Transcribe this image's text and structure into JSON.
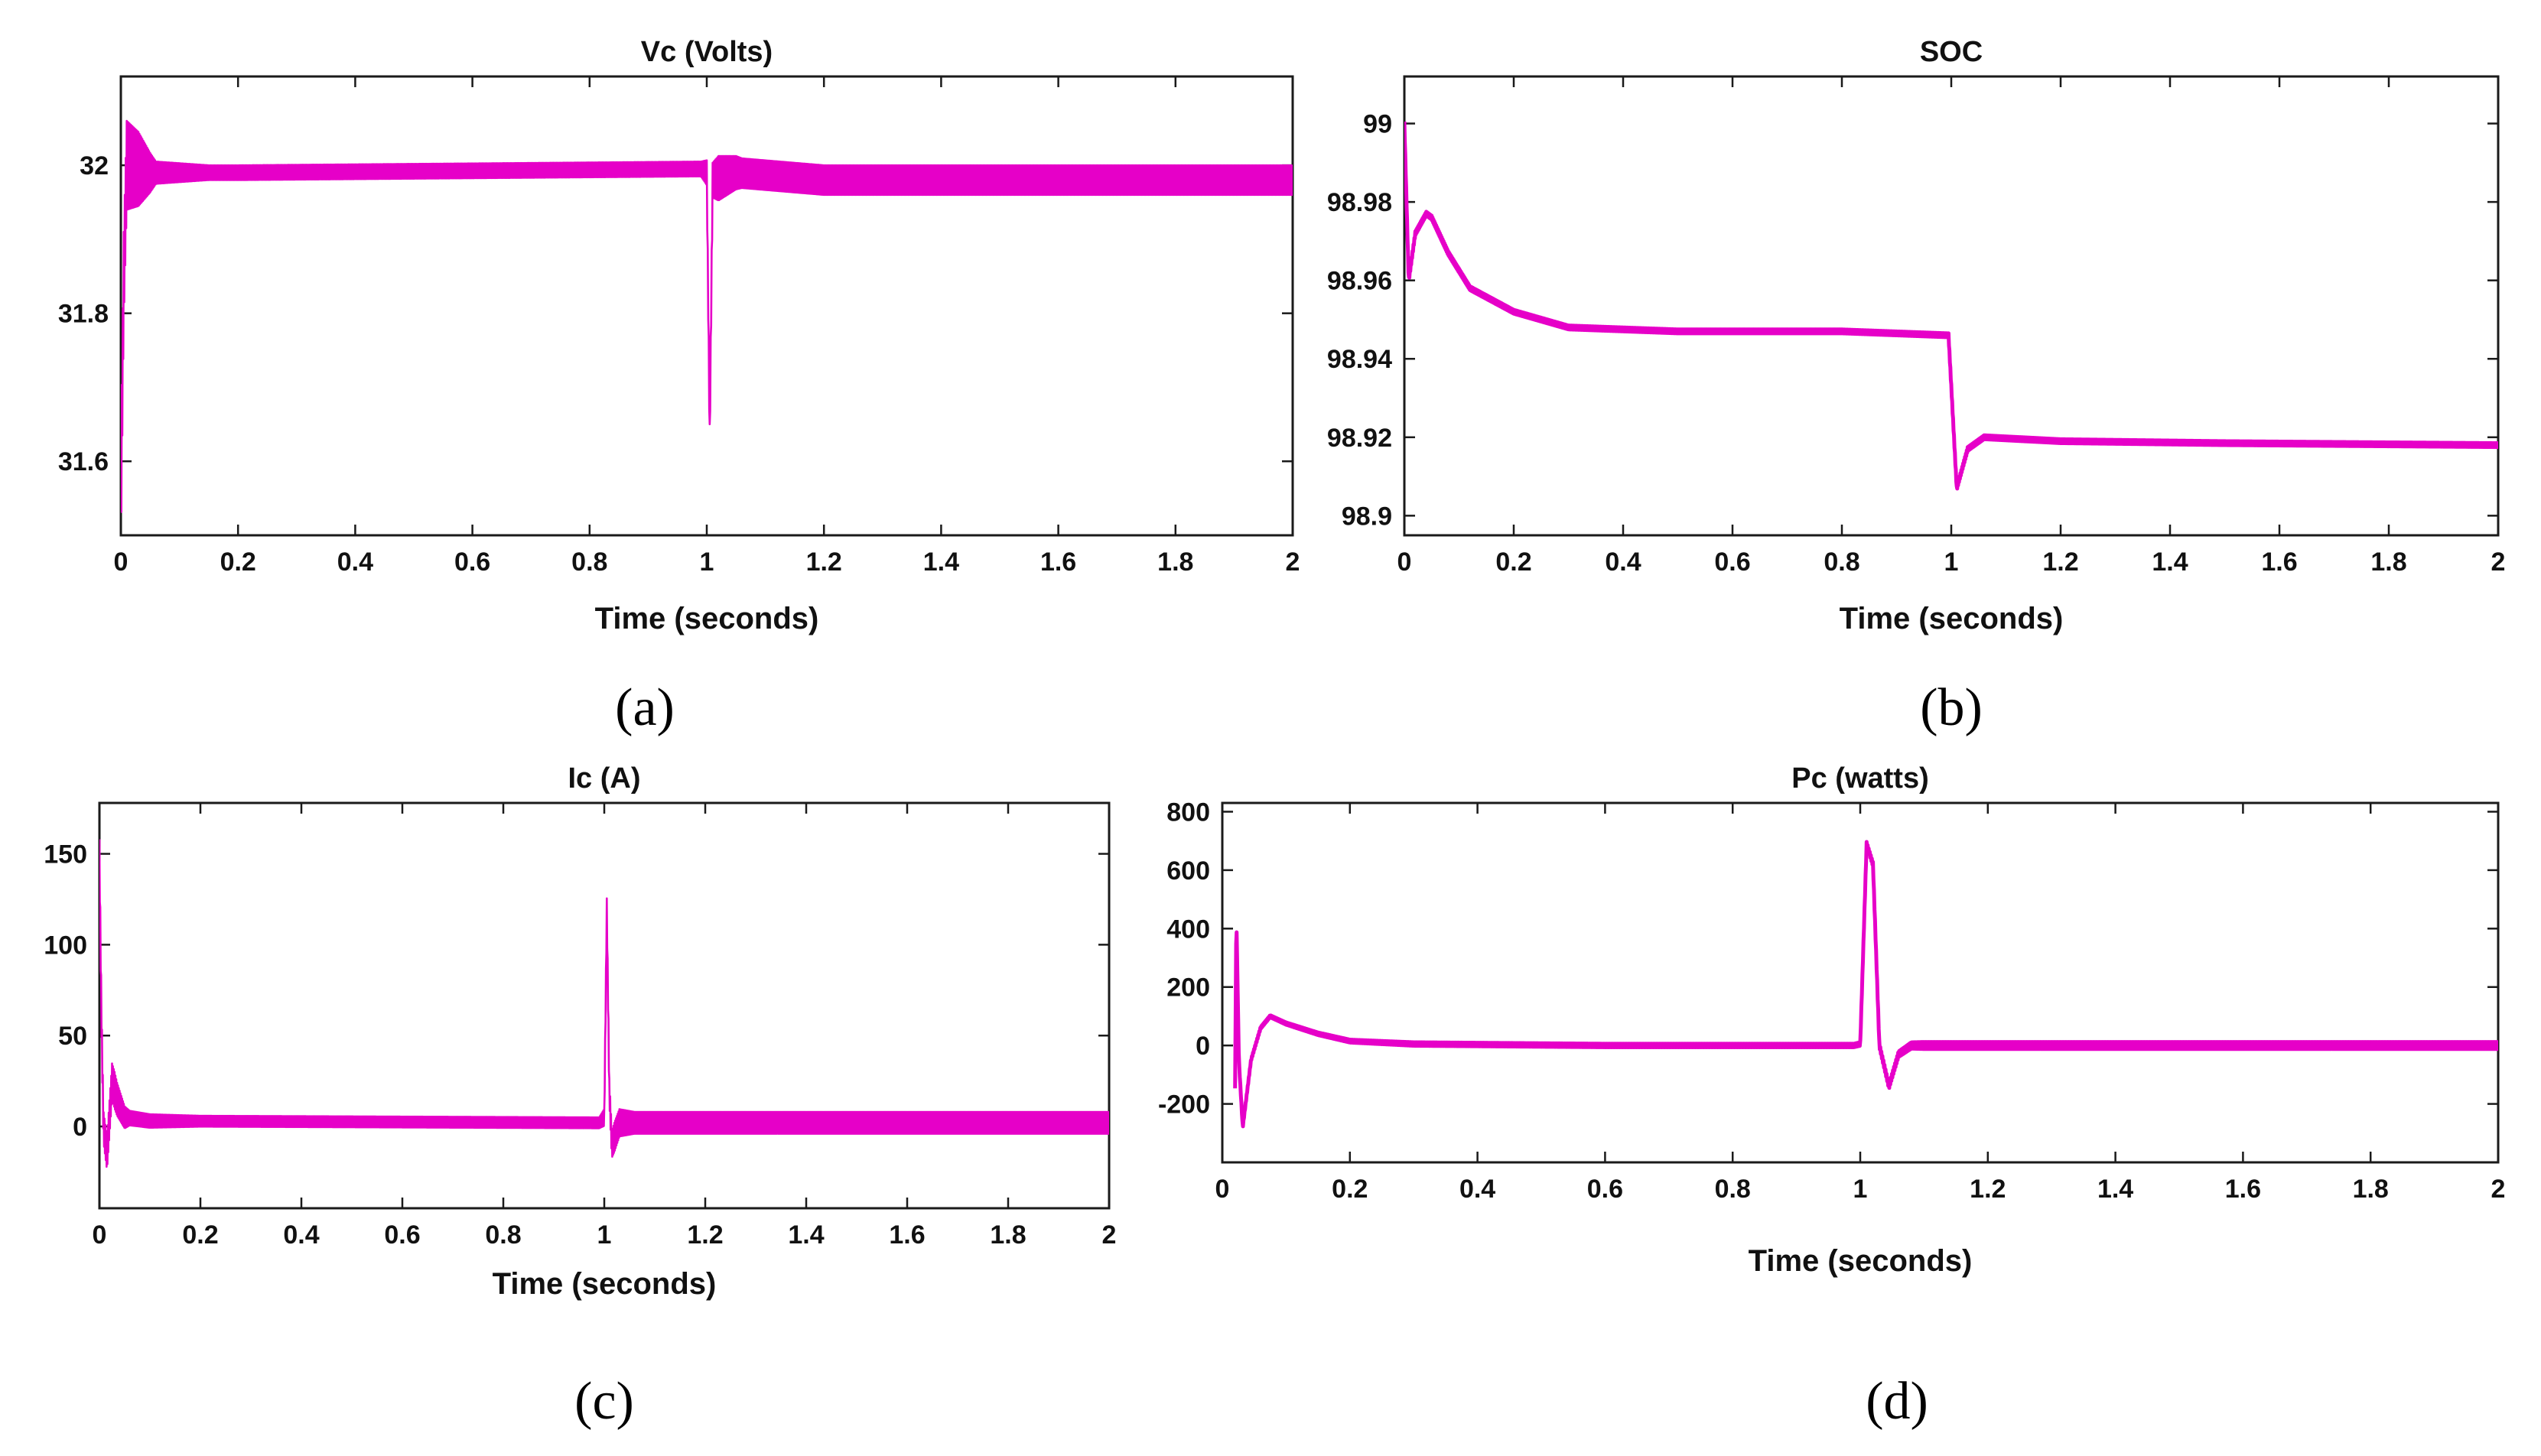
{
  "line_color": "#e600c8",
  "chart_data": [
    {
      "id": "a",
      "type": "line",
      "title": "Vc (Volts)",
      "xlabel": "Time (seconds)",
      "ylabel": "",
      "caption": "(a)",
      "xlim": [
        0,
        2
      ],
      "ylim": [
        31.5,
        32.12
      ],
      "xticks": [
        0,
        0.2,
        0.4,
        0.6,
        0.8,
        1,
        1.2,
        1.4,
        1.6,
        1.8,
        2
      ],
      "xtick_labels": [
        "0",
        "0.2",
        "0.4",
        "0.6",
        "0.8",
        "1",
        "1.2",
        "1.4",
        "1.6",
        "1.8",
        "2"
      ],
      "yticks": [
        31.6,
        31.8,
        32
      ],
      "ytick_labels": [
        "31.6",
        "31.8",
        "32"
      ],
      "series": [
        {
          "name": "Vc",
          "base": [
            [
              0,
              31.54
            ],
            [
              0.005,
              31.85
            ],
            [
              0.01,
              32.0
            ],
            [
              0.05,
              31.99
            ],
            [
              0.2,
              31.99
            ],
            [
              0.99,
              31.995
            ],
            [
              1.0,
              31.99
            ],
            [
              1.005,
              31.63
            ],
            [
              1.01,
              31.98
            ],
            [
              1.05,
              31.99
            ],
            [
              1.2,
              31.98
            ],
            [
              2.0,
              31.98
            ]
          ],
          "ripple": [
            [
              0,
              0.06
            ],
            [
              0.01,
              0.06
            ],
            [
              0.03,
              0.05
            ],
            [
              0.06,
              0.015
            ],
            [
              0.15,
              0.01
            ],
            [
              0.99,
              0.01
            ],
            [
              1.02,
              0.03
            ],
            [
              1.06,
              0.02
            ],
            [
              2.0,
              0.02
            ]
          ]
        }
      ]
    },
    {
      "id": "b",
      "type": "line",
      "title": "SOC",
      "xlabel": "Time (seconds)",
      "ylabel": "",
      "caption": "(b)",
      "xlim": [
        0,
        2
      ],
      "ylim": [
        98.895,
        99.012
      ],
      "xticks": [
        0,
        0.2,
        0.4,
        0.6,
        0.8,
        1,
        1.2,
        1.4,
        1.6,
        1.8,
        2
      ],
      "xtick_labels": [
        "0",
        "0.2",
        "0.4",
        "0.6",
        "0.8",
        "1",
        "1.2",
        "1.4",
        "1.6",
        "1.8",
        "2"
      ],
      "yticks": [
        98.9,
        98.92,
        98.94,
        98.96,
        98.98,
        99
      ],
      "ytick_labels": [
        "98.9",
        "98.92",
        "98.94",
        "98.96",
        "98.98",
        "99"
      ],
      "series": [
        {
          "name": "SOC",
          "base": [
            [
              0,
              99.0
            ],
            [
              0.008,
              98.96
            ],
            [
              0.02,
              98.972
            ],
            [
              0.04,
              98.977
            ],
            [
              0.05,
              98.976
            ],
            [
              0.08,
              98.967
            ],
            [
              0.12,
              98.958
            ],
            [
              0.2,
              98.952
            ],
            [
              0.3,
              98.948
            ],
            [
              0.5,
              98.947
            ],
            [
              0.8,
              98.947
            ],
            [
              0.995,
              98.946
            ],
            [
              1.01,
              98.907
            ],
            [
              1.03,
              98.917
            ],
            [
              1.06,
              98.92
            ],
            [
              1.2,
              98.919
            ],
            [
              1.5,
              98.9185
            ],
            [
              2.0,
              98.918
            ]
          ],
          "ripple": [
            [
              0,
              0.0005
            ],
            [
              2.0,
              0.0005
            ]
          ]
        }
      ]
    },
    {
      "id": "c",
      "type": "line",
      "title": "Ic (A)",
      "xlabel": "Time (seconds)",
      "ylabel": "",
      "caption": "(c)",
      "xlim": [
        0,
        2
      ],
      "ylim": [
        -45,
        178
      ],
      "xticks": [
        0,
        0.2,
        0.4,
        0.6,
        0.8,
        1,
        1.2,
        1.4,
        1.6,
        1.8,
        2
      ],
      "xtick_labels": [
        "0",
        "0.2",
        "0.4",
        "0.6",
        "0.8",
        "1",
        "1.2",
        "1.4",
        "1.6",
        "1.8",
        "2"
      ],
      "yticks": [
        0,
        50,
        100,
        150
      ],
      "ytick_labels": [
        "0",
        "50",
        "100",
        "150"
      ],
      "series": [
        {
          "name": "Ic",
          "base": [
            [
              0,
              150
            ],
            [
              0.004,
              60
            ],
            [
              0.008,
              0
            ],
            [
              0.015,
              -15
            ],
            [
              0.025,
              25
            ],
            [
              0.035,
              15
            ],
            [
              0.05,
              5
            ],
            [
              0.1,
              3
            ],
            [
              0.99,
              2
            ],
            [
              1.0,
              5
            ],
            [
              1.005,
              120
            ],
            [
              1.01,
              20
            ],
            [
              1.015,
              -10
            ],
            [
              1.03,
              2
            ],
            [
              2.0,
              2
            ]
          ],
          "ripple": [
            [
              0,
              8
            ],
            [
              0.03,
              10
            ],
            [
              0.06,
              4
            ],
            [
              0.2,
              3
            ],
            [
              0.99,
              3
            ],
            [
              1.02,
              8
            ],
            [
              1.06,
              6
            ],
            [
              2.0,
              6
            ]
          ]
        }
      ]
    },
    {
      "id": "d",
      "type": "line",
      "title": "Pc (watts)",
      "xlabel": "Time (seconds)",
      "ylabel": "",
      "caption": "(d)",
      "xlim": [
        0,
        2
      ],
      "ylim": [
        -400,
        830
      ],
      "xticks": [
        0,
        0.2,
        0.4,
        0.6,
        0.8,
        1,
        1.2,
        1.4,
        1.6,
        1.8,
        2
      ],
      "xtick_labels": [
        "0",
        "0.2",
        "0.4",
        "0.6",
        "0.8",
        "1",
        "1.2",
        "1.4",
        "1.6",
        "1.8",
        "2"
      ],
      "yticks": [
        -200,
        0,
        200,
        400,
        600,
        800
      ],
      "ytick_labels": [
        "-200",
        "0",
        "200",
        "400",
        "600",
        "800"
      ],
      "series": [
        {
          "name": "Pc",
          "base": [
            [
              0.02,
              -150
            ],
            [
              0.022,
              450
            ],
            [
              0.026,
              -50
            ],
            [
              0.032,
              -280
            ],
            [
              0.045,
              -50
            ],
            [
              0.06,
              60
            ],
            [
              0.075,
              100
            ],
            [
              0.1,
              75
            ],
            [
              0.15,
              40
            ],
            [
              0.2,
              15
            ],
            [
              0.3,
              5
            ],
            [
              0.6,
              0
            ],
            [
              0.99,
              0
            ],
            [
              1.0,
              5
            ],
            [
              1.01,
              690
            ],
            [
              1.02,
              620
            ],
            [
              1.03,
              0
            ],
            [
              1.045,
              -140
            ],
            [
              1.06,
              -30
            ],
            [
              1.08,
              0
            ],
            [
              1.2,
              0
            ],
            [
              2.0,
              0
            ]
          ],
          "ripple": [
            [
              0,
              3
            ],
            [
              0.3,
              6
            ],
            [
              1.0,
              6
            ],
            [
              1.1,
              12
            ],
            [
              2.0,
              12
            ]
          ]
        }
      ]
    }
  ]
}
